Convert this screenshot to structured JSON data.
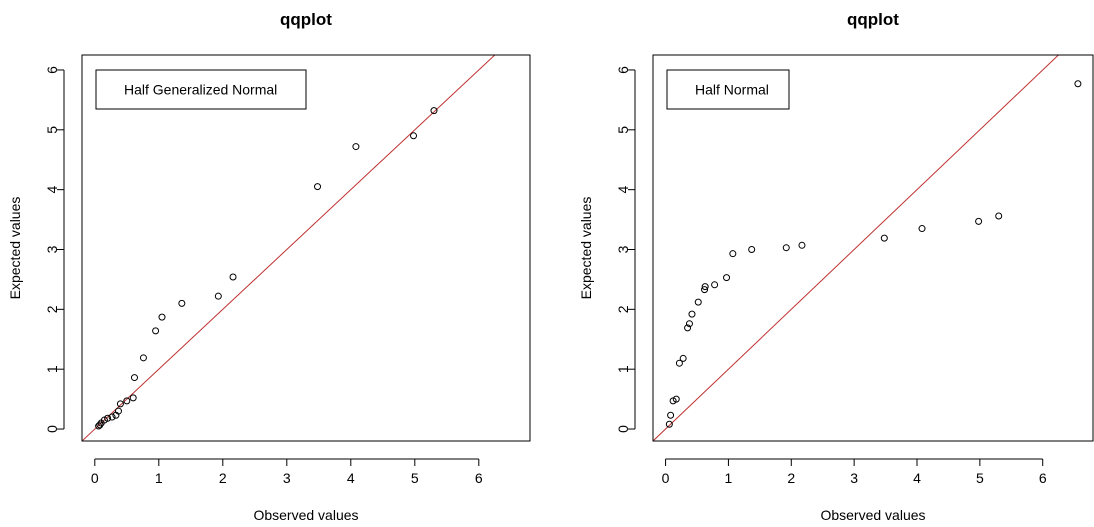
{
  "chart_data": [
    {
      "type": "scatter",
      "title": "qqplot",
      "xlabel": "Observed values",
      "ylabel": "Expected values",
      "xlim": [
        -0.2,
        6.8
      ],
      "ylim": [
        -0.2,
        6.25
      ],
      "xticks": [
        0,
        1,
        2,
        3,
        4,
        5,
        6
      ],
      "yticks": [
        0,
        1,
        2,
        3,
        4,
        5,
        6
      ],
      "legend": {
        "label": "Half Generalized Normal",
        "position": "top-left"
      },
      "reference_line": {
        "slope": 1,
        "intercept": 0,
        "color": "#c03030"
      },
      "point_color": "#000000",
      "series": [
        {
          "x": [
            0.06,
            0.08,
            0.1,
            0.15,
            0.2,
            0.27,
            0.33,
            0.37,
            0.4,
            0.5,
            0.6,
            0.62,
            0.76,
            0.95,
            1.05,
            1.36,
            1.93,
            2.16,
            3.48,
            4.08,
            4.98,
            5.3
          ],
          "y": [
            0.05,
            0.07,
            0.1,
            0.15,
            0.18,
            0.2,
            0.23,
            0.3,
            0.42,
            0.47,
            0.52,
            0.86,
            1.19,
            1.64,
            1.87,
            2.1,
            2.22,
            2.54,
            4.05,
            4.72,
            4.9,
            5.32
          ]
        }
      ]
    },
    {
      "type": "scatter",
      "title": "qqplot",
      "xlabel": "Observed values",
      "ylabel": "Expected values",
      "xlim": [
        -0.2,
        6.8
      ],
      "ylim": [
        -0.2,
        6.25
      ],
      "xticks": [
        0,
        1,
        2,
        3,
        4,
        5,
        6
      ],
      "yticks": [
        0,
        1,
        2,
        3,
        4,
        5,
        6
      ],
      "legend": {
        "label": "Half Normal",
        "position": "top-left"
      },
      "reference_line": {
        "slope": 1,
        "intercept": 0,
        "color": "#c03030"
      },
      "point_color": "#000000",
      "series": [
        {
          "x": [
            0.06,
            0.08,
            0.12,
            0.17,
            0.22,
            0.28,
            0.35,
            0.38,
            0.42,
            0.52,
            0.62,
            0.63,
            0.78,
            0.97,
            1.07,
            1.37,
            1.92,
            2.17,
            3.48,
            4.08,
            4.98,
            5.3,
            6.56
          ],
          "y": [
            0.08,
            0.23,
            0.47,
            0.5,
            1.1,
            1.18,
            1.69,
            1.76,
            1.92,
            2.12,
            2.33,
            2.38,
            2.41,
            2.53,
            2.93,
            3.0,
            3.03,
            3.07,
            3.19,
            3.35,
            3.47,
            3.56,
            5.77
          ]
        }
      ]
    }
  ]
}
